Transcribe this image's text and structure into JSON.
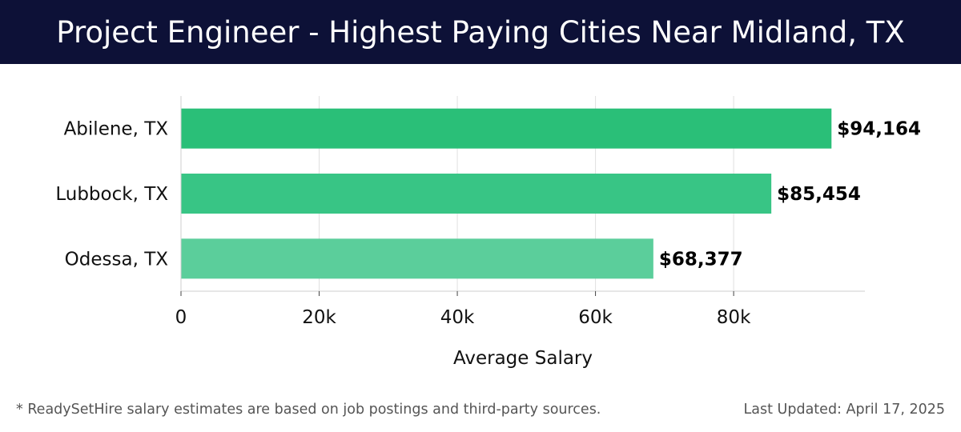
{
  "header": {
    "title": "Project Engineer - Highest Paying Cities Near Midland, TX"
  },
  "chart_data": {
    "type": "bar",
    "orientation": "horizontal",
    "title": "Project Engineer - Highest Paying Cities Near Midland, TX",
    "categories": [
      "Abilene, TX",
      "Lubbock, TX",
      "Odessa, TX"
    ],
    "values": [
      94164,
      85454,
      68377
    ],
    "value_labels": [
      "$94,164",
      "$85,454",
      "$68,377"
    ],
    "bar_colors": [
      "#2abf78",
      "#38c585",
      "#5bce9b"
    ],
    "xlabel": "Average Salary",
    "ylabel": "",
    "xlim": [
      0,
      99000
    ],
    "xticks": [
      0,
      20000,
      40000,
      60000,
      80000
    ],
    "xtick_labels": [
      "0",
      "20k",
      "40k",
      "60k",
      "80k"
    ],
    "grid": true
  },
  "footer": {
    "note": "* ReadySetHire salary estimates are based on job postings and third-party sources.",
    "updated": "Last Updated: April 17, 2025"
  }
}
